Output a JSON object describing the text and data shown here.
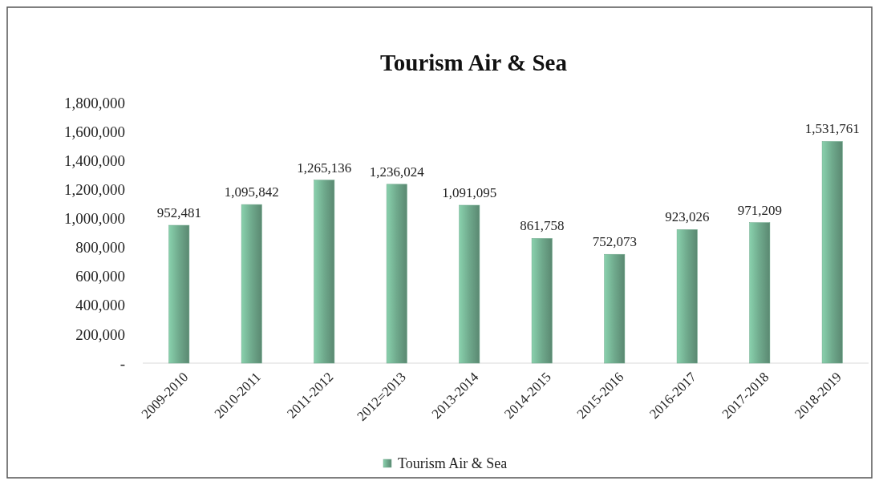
{
  "chart_data": {
    "type": "bar",
    "title": "Tourism Air & Sea",
    "categories": [
      "2009-2010",
      "2010-2011",
      "2011-2012",
      "2012=2013",
      "2013-2014",
      "2014-2015",
      "2015-2016",
      "2016-2017",
      "2017-2018",
      "2018-2019"
    ],
    "series": [
      {
        "name": "Tourism Air & Sea",
        "color": "#6fa98c",
        "values": [
          952481,
          1095842,
          1265136,
          1236024,
          1091095,
          861758,
          752073,
          923026,
          971209,
          1531761
        ],
        "value_labels": [
          "952,481",
          "1,095,842",
          "1,265,136",
          "1,236,024",
          "1,091,095",
          "861,758",
          "752,073",
          "923,026",
          "971,209",
          "1,531,761"
        ]
      }
    ],
    "ylim": [
      0,
      1800000
    ],
    "yticks": [
      {
        "value": 0,
        "label": "-"
      },
      {
        "value": 200000,
        "label": "200,000"
      },
      {
        "value": 400000,
        "label": "400,000"
      },
      {
        "value": 600000,
        "label": "600,000"
      },
      {
        "value": 800000,
        "label": "800,000"
      },
      {
        "value": 1000000,
        "label": "1,000,000"
      },
      {
        "value": 1200000,
        "label": "1,200,000"
      },
      {
        "value": 1400000,
        "label": "1,400,000"
      },
      {
        "value": 1600000,
        "label": "1,600,000"
      },
      {
        "value": 1800000,
        "label": "1,800,000"
      }
    ],
    "legend": "bottom"
  }
}
